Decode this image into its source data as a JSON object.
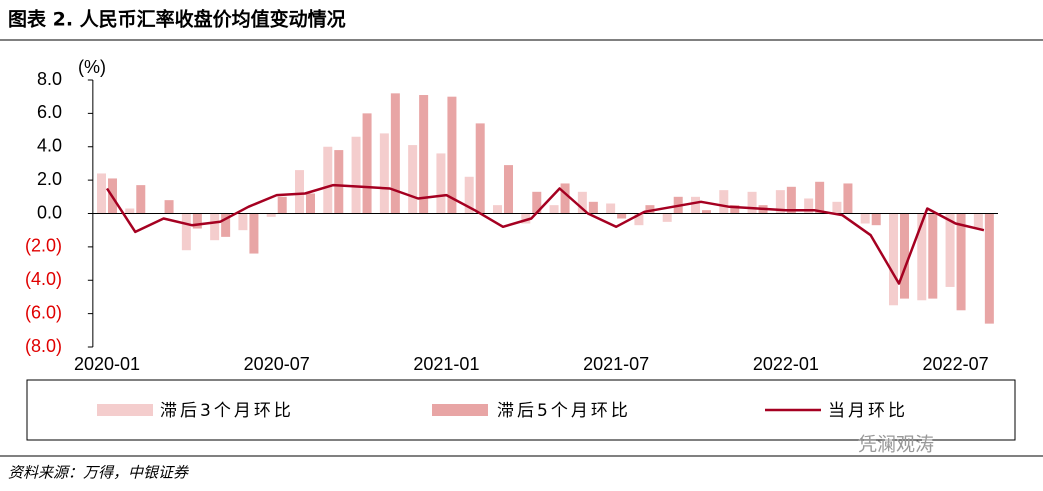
{
  "chart_data": {
    "type": "bar_line",
    "title": "图表 2. 人民币汇率收盘价均值变动情况",
    "y_unit": "(%)",
    "source": "资料来源：万得，中银证券",
    "watermark": "凭澜观涛",
    "categories": [
      "2020-01",
      null,
      null,
      null,
      null,
      null,
      "2020-07",
      null,
      null,
      null,
      null,
      null,
      "2021-01",
      null,
      null,
      null,
      null,
      null,
      "2021-07",
      null,
      null,
      null,
      null,
      null,
      "2022-01",
      null,
      null,
      null,
      null,
      null,
      "2022-07",
      null
    ],
    "series": [
      {
        "name": "滞后3个月环比",
        "kind": "bar",
        "color": "#f4cdcd",
        "values": [
          2.4,
          0.3,
          0.0,
          -2.2,
          -1.6,
          -1.0,
          -0.2,
          2.6,
          4.0,
          4.6,
          4.8,
          4.1,
          3.6,
          2.2,
          0.5,
          -0.6,
          0.5,
          1.3,
          0.6,
          -0.7,
          -0.5,
          1.0,
          1.4,
          1.3,
          1.4,
          0.9,
          0.7,
          -0.6,
          -5.5,
          -5.2,
          -4.4,
          -0.9
        ]
      },
      {
        "name": "滞后5个月环比",
        "kind": "bar",
        "color": "#e8a5a5",
        "values": [
          2.1,
          1.7,
          0.8,
          -0.9,
          -1.4,
          -2.4,
          1.0,
          1.2,
          3.8,
          6.0,
          7.2,
          7.1,
          7.0,
          5.4,
          2.9,
          1.3,
          1.8,
          0.7,
          -0.3,
          0.5,
          1.0,
          0.2,
          0.5,
          0.5,
          1.6,
          1.9,
          1.8,
          -0.7,
          -5.1,
          -5.1,
          -5.8,
          -6.6
        ]
      },
      {
        "name": "当月环比",
        "kind": "line",
        "color": "#a50021",
        "values": [
          1.5,
          -1.1,
          -0.3,
          -0.7,
          -0.5,
          0.4,
          1.1,
          1.2,
          1.7,
          1.6,
          1.5,
          0.9,
          1.1,
          0.2,
          -0.8,
          -0.3,
          1.5,
          0.0,
          -0.8,
          0.1,
          0.4,
          0.7,
          0.4,
          0.3,
          0.2,
          0.2,
          -0.1,
          -1.3,
          -4.2,
          0.3,
          -0.6,
          -1.0
        ]
      }
    ],
    "ylim": [
      -8,
      8
    ],
    "yticks": [
      {
        "value": 8,
        "label": "8.0"
      },
      {
        "value": 6,
        "label": "6.0"
      },
      {
        "value": 4,
        "label": "4.0"
      },
      {
        "value": 2,
        "label": "2.0"
      },
      {
        "value": 0,
        "label": "0.0"
      },
      {
        "value": -2,
        "label": "(2.0)"
      },
      {
        "value": -4,
        "label": "(4.0)"
      },
      {
        "value": -6,
        "label": "(6.0)"
      },
      {
        "value": -8,
        "label": "(8.0)"
      }
    ],
    "negative_label_color": "#e00000",
    "legend": "bottom"
  }
}
